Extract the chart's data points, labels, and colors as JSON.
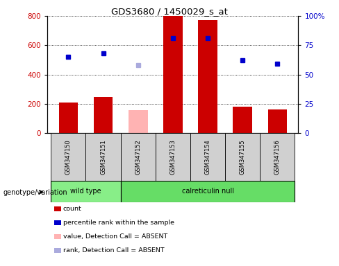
{
  "title": "GDS3680 / 1450029_s_at",
  "samples": [
    "GSM347150",
    "GSM347151",
    "GSM347152",
    "GSM347153",
    "GSM347154",
    "GSM347155",
    "GSM347156"
  ],
  "bar_values": [
    210,
    248,
    155,
    800,
    770,
    178,
    163
  ],
  "bar_colors": [
    "#cc0000",
    "#cc0000",
    "#ffb3b3",
    "#cc0000",
    "#cc0000",
    "#cc0000",
    "#cc0000"
  ],
  "rank_values": [
    65,
    68,
    58,
    81,
    81,
    62,
    59
  ],
  "rank_colors": [
    "#0000cc",
    "#0000cc",
    "#aaaadd",
    "#0000cc",
    "#0000cc",
    "#0000cc",
    "#0000cc"
  ],
  "ylim_left": [
    0,
    800
  ],
  "ylim_right": [
    0,
    100
  ],
  "yticks_left": [
    0,
    200,
    400,
    600,
    800
  ],
  "yticks_right": [
    0,
    25,
    50,
    75,
    100
  ],
  "ytick_labels_right": [
    "0",
    "25",
    "50",
    "75",
    "100%"
  ],
  "wt_indices": [
    0,
    1
  ],
  "cn_indices": [
    2,
    3,
    4,
    5,
    6
  ],
  "wt_color": "#88ee88",
  "cn_color": "#66dd66",
  "legend_colors": [
    "#cc0000",
    "#0000cc",
    "#ffb3b3",
    "#aaaadd"
  ],
  "legend_labels": [
    "count",
    "percentile rank within the sample",
    "value, Detection Call = ABSENT",
    "rank, Detection Call = ABSENT"
  ],
  "group_label": "genotype/variation",
  "bar_width": 0.55
}
